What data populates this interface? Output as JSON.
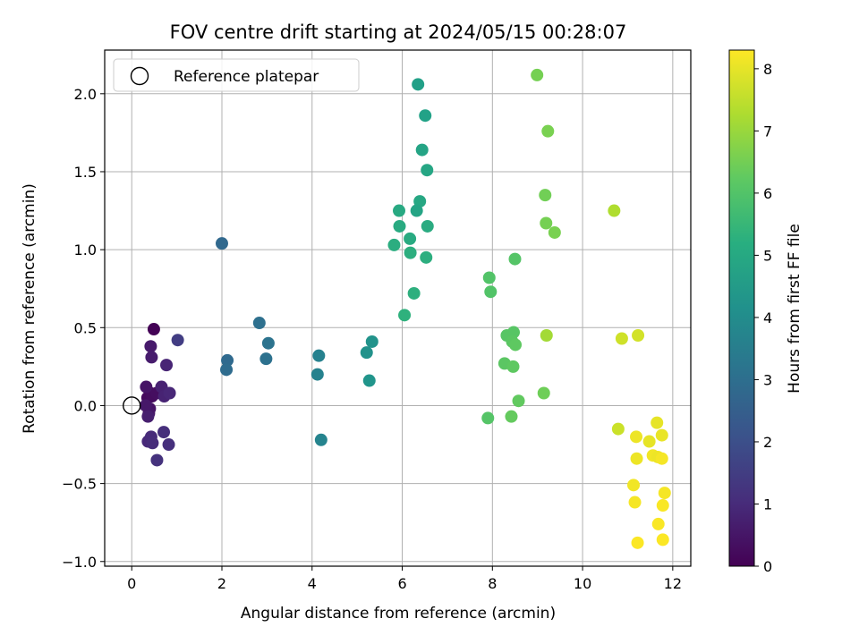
{
  "chart_data": {
    "type": "scatter",
    "title": "FOV centre drift starting at 2024/05/15 00:28:07",
    "xlabel": "Angular distance from reference (arcmin)",
    "ylabel": "Rotation from reference (arcmin)",
    "xlim": [
      -0.6,
      12.4
    ],
    "ylim": [
      -1.03,
      2.28
    ],
    "xticks": [
      0,
      2,
      4,
      6,
      8,
      10,
      12
    ],
    "xtick_labels": [
      "0",
      "2",
      "4",
      "6",
      "8",
      "10",
      "12"
    ],
    "yticks": [
      -1.0,
      -0.5,
      0.0,
      0.5,
      1.0,
      1.5,
      2.0
    ],
    "ytick_labels": [
      "−1.0",
      "−0.5",
      "0.0",
      "0.5",
      "1.0",
      "1.5",
      "2.0"
    ],
    "grid": true,
    "legend": {
      "placement": "top-left",
      "entries": [
        "Reference platepar"
      ]
    },
    "reference_point": {
      "x": 0,
      "y": 0,
      "label": "Reference platepar"
    },
    "colorbar": {
      "label": "Hours from first FF file",
      "range": [
        0,
        8.3
      ],
      "ticks": [
        0,
        1,
        2,
        3,
        4,
        5,
        6,
        7,
        8
      ],
      "tick_labels": [
        "0",
        "1",
        "2",
        "3",
        "4",
        "5",
        "6",
        "7",
        "8"
      ],
      "colormap": "viridis"
    },
    "points": [
      {
        "x": 0.49,
        "y": 0.49,
        "c": 0.05
      },
      {
        "x": 0.41,
        "y": 0.08,
        "c": 0.1
      },
      {
        "x": 0.35,
        "y": 0.05,
        "c": 0.2
      },
      {
        "x": 0.45,
        "y": 0.06,
        "c": 0.25
      },
      {
        "x": 0.55,
        "y": 0.08,
        "c": 0.3
      },
      {
        "x": 0.4,
        "y": -0.02,
        "c": 0.4
      },
      {
        "x": 0.32,
        "y": 0.12,
        "c": 0.45
      },
      {
        "x": 0.38,
        "y": -0.05,
        "c": 0.5
      },
      {
        "x": 0.31,
        "y": 0.0,
        "c": 0.55
      },
      {
        "x": 0.42,
        "y": 0.38,
        "c": 0.6
      },
      {
        "x": 0.44,
        "y": 0.31,
        "c": 0.65
      },
      {
        "x": 0.36,
        "y": -0.07,
        "c": 0.7
      },
      {
        "x": 0.66,
        "y": 0.12,
        "c": 0.75
      },
      {
        "x": 0.72,
        "y": 0.06,
        "c": 0.8
      },
      {
        "x": 0.77,
        "y": 0.26,
        "c": 0.85
      },
      {
        "x": 0.84,
        "y": 0.08,
        "c": 0.9
      },
      {
        "x": 0.36,
        "y": -0.23,
        "c": 0.95
      },
      {
        "x": 0.43,
        "y": -0.2,
        "c": 1.0
      },
      {
        "x": 0.46,
        "y": -0.24,
        "c": 1.05
      },
      {
        "x": 0.71,
        "y": -0.17,
        "c": 1.1
      },
      {
        "x": 0.82,
        "y": -0.25,
        "c": 1.15
      },
      {
        "x": 0.56,
        "y": -0.35,
        "c": 1.2
      },
      {
        "x": 1.02,
        "y": 0.42,
        "c": 1.5
      },
      {
        "x": 2.0,
        "y": 1.04,
        "c": 2.8
      },
      {
        "x": 2.12,
        "y": 0.29,
        "c": 2.85
      },
      {
        "x": 2.1,
        "y": 0.23,
        "c": 2.9
      },
      {
        "x": 2.83,
        "y": 0.53,
        "c": 3.05
      },
      {
        "x": 3.03,
        "y": 0.4,
        "c": 3.15
      },
      {
        "x": 2.98,
        "y": 0.3,
        "c": 3.1
      },
      {
        "x": 4.15,
        "y": 0.32,
        "c": 3.65
      },
      {
        "x": 4.12,
        "y": 0.2,
        "c": 3.7
      },
      {
        "x": 4.2,
        "y": -0.22,
        "c": 3.75
      },
      {
        "x": 5.21,
        "y": 0.34,
        "c": 4.2
      },
      {
        "x": 5.33,
        "y": 0.41,
        "c": 4.25
      },
      {
        "x": 5.27,
        "y": 0.16,
        "c": 4.3
      },
      {
        "x": 6.35,
        "y": 2.06,
        "c": 4.7
      },
      {
        "x": 6.51,
        "y": 1.86,
        "c": 4.75
      },
      {
        "x": 6.44,
        "y": 1.64,
        "c": 4.85
      },
      {
        "x": 6.55,
        "y": 1.51,
        "c": 4.9
      },
      {
        "x": 6.39,
        "y": 1.31,
        "c": 4.95
      },
      {
        "x": 5.93,
        "y": 1.25,
        "c": 5.0
      },
      {
        "x": 6.32,
        "y": 1.25,
        "c": 4.85
      },
      {
        "x": 5.94,
        "y": 1.15,
        "c": 5.05
      },
      {
        "x": 6.56,
        "y": 1.15,
        "c": 5.1
      },
      {
        "x": 6.17,
        "y": 1.07,
        "c": 5.05
      },
      {
        "x": 5.82,
        "y": 1.03,
        "c": 5.15
      },
      {
        "x": 6.18,
        "y": 0.98,
        "c": 5.2
      },
      {
        "x": 6.53,
        "y": 0.95,
        "c": 5.2
      },
      {
        "x": 6.26,
        "y": 0.72,
        "c": 5.25
      },
      {
        "x": 6.05,
        "y": 0.58,
        "c": 5.3
      },
      {
        "x": 7.93,
        "y": 0.82,
        "c": 6.0
      },
      {
        "x": 7.96,
        "y": 0.73,
        "c": 6.0
      },
      {
        "x": 8.5,
        "y": 0.94,
        "c": 6.05
      },
      {
        "x": 8.32,
        "y": 0.45,
        "c": 6.1
      },
      {
        "x": 8.47,
        "y": 0.47,
        "c": 6.1
      },
      {
        "x": 8.44,
        "y": 0.41,
        "c": 6.15
      },
      {
        "x": 8.51,
        "y": 0.39,
        "c": 6.2
      },
      {
        "x": 8.27,
        "y": 0.27,
        "c": 6.15
      },
      {
        "x": 8.46,
        "y": 0.25,
        "c": 6.2
      },
      {
        "x": 8.58,
        "y": 0.03,
        "c": 6.25
      },
      {
        "x": 7.9,
        "y": -0.08,
        "c": 6.05
      },
      {
        "x": 8.42,
        "y": -0.07,
        "c": 6.3
      },
      {
        "x": 8.99,
        "y": 2.12,
        "c": 6.55
      },
      {
        "x": 9.23,
        "y": 1.76,
        "c": 6.6
      },
      {
        "x": 9.17,
        "y": 1.35,
        "c": 6.5
      },
      {
        "x": 9.19,
        "y": 1.17,
        "c": 6.55
      },
      {
        "x": 9.38,
        "y": 1.11,
        "c": 6.6
      },
      {
        "x": 9.2,
        "y": 0.45,
        "c": 7.15
      },
      {
        "x": 9.14,
        "y": 0.08,
        "c": 6.45
      },
      {
        "x": 10.7,
        "y": 1.25,
        "c": 7.3
      },
      {
        "x": 10.87,
        "y": 0.43,
        "c": 7.7
      },
      {
        "x": 11.23,
        "y": 0.45,
        "c": 7.75
      },
      {
        "x": 10.79,
        "y": -0.15,
        "c": 7.65
      },
      {
        "x": 11.65,
        "y": -0.11,
        "c": 8.0
      },
      {
        "x": 11.19,
        "y": -0.2,
        "c": 8.1
      },
      {
        "x": 11.76,
        "y": -0.19,
        "c": 8.05
      },
      {
        "x": 11.48,
        "y": -0.23,
        "c": 8.0
      },
      {
        "x": 11.2,
        "y": -0.34,
        "c": 8.1
      },
      {
        "x": 11.56,
        "y": -0.32,
        "c": 8.15
      },
      {
        "x": 11.67,
        "y": -0.33,
        "c": 8.1
      },
      {
        "x": 11.76,
        "y": -0.34,
        "c": 8.2
      },
      {
        "x": 11.13,
        "y": -0.51,
        "c": 8.15
      },
      {
        "x": 11.82,
        "y": -0.56,
        "c": 8.2
      },
      {
        "x": 11.16,
        "y": -0.62,
        "c": 8.2
      },
      {
        "x": 11.78,
        "y": -0.64,
        "c": 8.25
      },
      {
        "x": 11.68,
        "y": -0.76,
        "c": 8.25
      },
      {
        "x": 11.78,
        "y": -0.86,
        "c": 8.28
      },
      {
        "x": 11.22,
        "y": -0.88,
        "c": 8.28
      }
    ]
  }
}
